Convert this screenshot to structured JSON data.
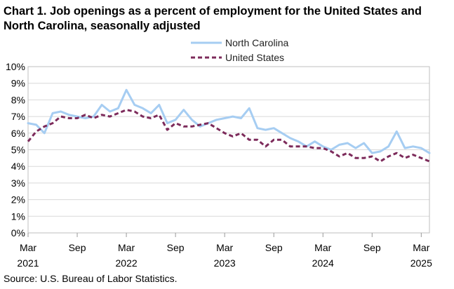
{
  "title": "Chart 1. Job openings as a percent of employment for the United States and North Carolina, seasonally adjusted",
  "source": "Source: U.S. Bureau of Labor Statistics.",
  "chart_data": {
    "type": "line",
    "title": "Chart 1. Job openings as a percent of employment for the United States and North Carolina, seasonally adjusted",
    "xlabel": "",
    "ylabel": "",
    "ylim": [
      0,
      10
    ],
    "y_ticks": [
      "0%",
      "1%",
      "2%",
      "3%",
      "4%",
      "5%",
      "6%",
      "7%",
      "8%",
      "9%",
      "10%"
    ],
    "x_ticks": [
      {
        "index": 0,
        "label": "Mar",
        "year": "2021"
      },
      {
        "index": 6,
        "label": "Sep",
        "year": ""
      },
      {
        "index": 12,
        "label": "Mar",
        "year": "2022"
      },
      {
        "index": 18,
        "label": "Sep",
        "year": ""
      },
      {
        "index": 24,
        "label": "Mar",
        "year": "2023"
      },
      {
        "index": 30,
        "label": "Sep",
        "year": ""
      },
      {
        "index": 36,
        "label": "Mar",
        "year": "2024"
      },
      {
        "index": 42,
        "label": "Sep",
        "year": ""
      },
      {
        "index": 48,
        "label": "Mar",
        "year": "2025"
      }
    ],
    "x_start": "Mar 2021",
    "x_end": "Mar 2025",
    "legend_position": "top",
    "grid": true,
    "series": [
      {
        "name": "North Carolina",
        "color": "#a6cdf2",
        "style": "solid",
        "values": [
          6.6,
          6.5,
          6.0,
          7.2,
          7.3,
          7.1,
          7.0,
          6.9,
          7.0,
          7.7,
          7.3,
          7.5,
          8.6,
          7.7,
          7.5,
          7.2,
          7.7,
          6.6,
          6.8,
          7.4,
          6.8,
          6.4,
          6.6,
          6.8,
          6.9,
          7.0,
          6.9,
          7.5,
          6.3,
          6.2,
          6.3,
          6.0,
          5.7,
          5.5,
          5.2,
          5.5,
          5.2,
          5.0,
          5.3,
          5.4,
          5.1,
          5.4,
          4.8,
          4.9,
          5.2,
          6.1,
          5.1,
          5.2,
          5.1,
          4.8
        ]
      },
      {
        "name": "United States",
        "color": "#7d2b5b",
        "style": "dashed",
        "values": [
          5.5,
          6.1,
          6.4,
          6.6,
          7.0,
          6.9,
          6.9,
          7.1,
          6.9,
          7.1,
          7.0,
          7.2,
          7.4,
          7.3,
          7.0,
          6.9,
          7.1,
          6.2,
          6.6,
          6.4,
          6.4,
          6.5,
          6.6,
          6.3,
          6.0,
          5.8,
          6.0,
          5.6,
          5.6,
          5.2,
          5.6,
          5.6,
          5.2,
          5.2,
          5.2,
          5.1,
          5.1,
          4.9,
          4.6,
          4.8,
          4.5,
          4.5,
          4.6,
          4.3,
          4.6,
          4.8,
          4.5,
          4.7,
          4.5,
          4.3
        ]
      }
    ]
  }
}
